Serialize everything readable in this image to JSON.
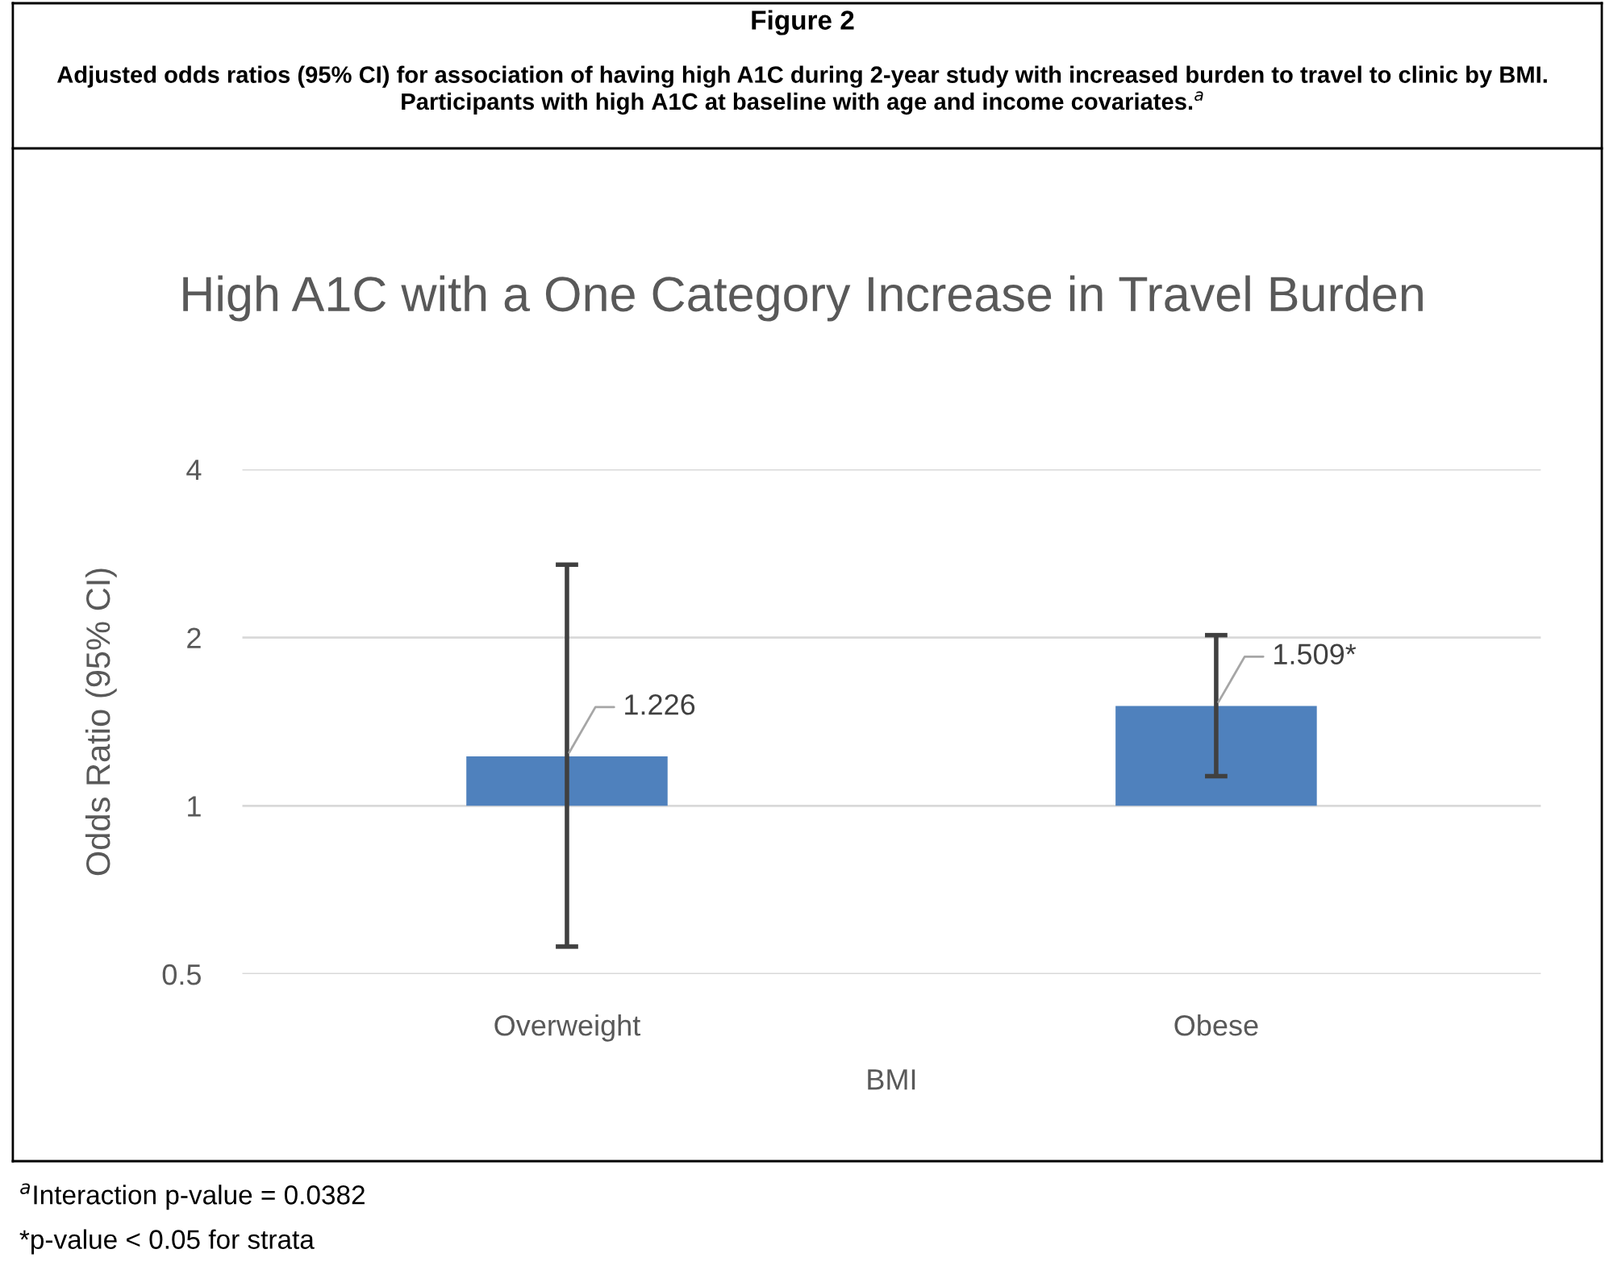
{
  "chart_data": {
    "type": "bar",
    "title": "Figure 2",
    "subtitle": "Adjusted odds ratios (95% CI) for association of having high A1C during 2-year study with increased burden to travel to clinic by BMI. Participants with high A1C at baseline with age and income covariates.$^{a}$",
    "annotations": [
      "High A1C with a One Category Increase in Travel Burden",
      "$^{a}$Interaction p-value = 0.0382",
      "*p-value < 0.05 for strata"
    ],
    "categories": [
      "Overweight",
      "Obese"
    ],
    "base": [
      1,
      1
    ],
    "values": [
      0.226,
      0.509
    ],
    "value_labels": [
      "1.226",
      "1.509*"
    ],
    "errors": [
      [
        0.56,
        2.7
      ],
      [
        1.13,
        2.02
      ]
    ],
    "color": "#4f81bd",
    "xlabel": "BMI",
    "ylabel": "Odds Ratio (95% CI)",
    "log": true,
    "ylim": [
      0.5,
      4
    ],
    "yticks": [
      0.5,
      1,
      2,
      4
    ],
    "grid": "y"
  }
}
